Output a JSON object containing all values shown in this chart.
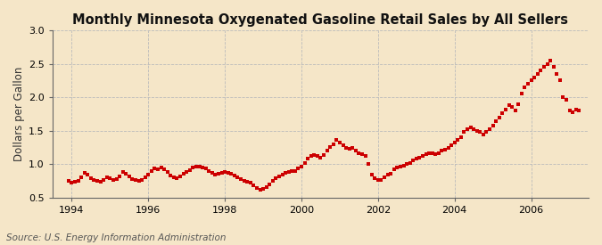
{
  "title": "Monthly Minnesota Oxygenated Gasoline Retail Sales by All Sellers",
  "ylabel": "Dollars per Gallon",
  "source": "Source: U.S. Energy Information Administration",
  "xlim": [
    1993.5,
    2007.5
  ],
  "ylim": [
    0.5,
    3.0
  ],
  "yticks": [
    0.5,
    1.0,
    1.5,
    2.0,
    2.5,
    3.0
  ],
  "xticks": [
    1994,
    1996,
    1998,
    2000,
    2002,
    2004,
    2006
  ],
  "background_color": "#f5e6c8",
  "plot_bg_color": "#f5e6c8",
  "marker_color": "#cc0000",
  "marker_size": 8,
  "grid_color": "#bbbbbb",
  "title_fontsize": 10.5,
  "label_fontsize": 8.5,
  "tick_fontsize": 8,
  "source_fontsize": 7.5,
  "data": [
    [
      1993.917,
      0.755
    ],
    [
      1994.0,
      0.727
    ],
    [
      1994.083,
      0.737
    ],
    [
      1994.167,
      0.755
    ],
    [
      1994.25,
      0.8
    ],
    [
      1994.333,
      0.87
    ],
    [
      1994.417,
      0.84
    ],
    [
      1994.5,
      0.79
    ],
    [
      1994.583,
      0.758
    ],
    [
      1994.667,
      0.745
    ],
    [
      1994.75,
      0.742
    ],
    [
      1994.833,
      0.768
    ],
    [
      1994.917,
      0.798
    ],
    [
      1995.0,
      0.788
    ],
    [
      1995.083,
      0.765
    ],
    [
      1995.167,
      0.778
    ],
    [
      1995.25,
      0.82
    ],
    [
      1995.333,
      0.878
    ],
    [
      1995.417,
      0.85
    ],
    [
      1995.5,
      0.818
    ],
    [
      1995.583,
      0.778
    ],
    [
      1995.667,
      0.758
    ],
    [
      1995.75,
      0.748
    ],
    [
      1995.833,
      0.762
    ],
    [
      1995.917,
      0.8
    ],
    [
      1996.0,
      0.84
    ],
    [
      1996.083,
      0.898
    ],
    [
      1996.167,
      0.93
    ],
    [
      1996.25,
      0.922
    ],
    [
      1996.333,
      0.952
    ],
    [
      1996.417,
      0.92
    ],
    [
      1996.5,
      0.882
    ],
    [
      1996.583,
      0.832
    ],
    [
      1996.667,
      0.8
    ],
    [
      1996.75,
      0.792
    ],
    [
      1996.833,
      0.818
    ],
    [
      1996.917,
      0.858
    ],
    [
      1997.0,
      0.888
    ],
    [
      1997.083,
      0.912
    ],
    [
      1997.167,
      0.95
    ],
    [
      1997.25,
      0.968
    ],
    [
      1997.333,
      0.958
    ],
    [
      1997.417,
      0.95
    ],
    [
      1997.5,
      0.93
    ],
    [
      1997.583,
      0.9
    ],
    [
      1997.667,
      0.868
    ],
    [
      1997.75,
      0.842
    ],
    [
      1997.833,
      0.852
    ],
    [
      1997.917,
      0.872
    ],
    [
      1998.0,
      0.878
    ],
    [
      1998.083,
      0.87
    ],
    [
      1998.167,
      0.858
    ],
    [
      1998.25,
      0.832
    ],
    [
      1998.333,
      0.8
    ],
    [
      1998.417,
      0.772
    ],
    [
      1998.5,
      0.752
    ],
    [
      1998.583,
      0.738
    ],
    [
      1998.667,
      0.718
    ],
    [
      1998.75,
      0.678
    ],
    [
      1998.833,
      0.648
    ],
    [
      1998.917,
      0.618
    ],
    [
      1999.0,
      0.628
    ],
    [
      1999.083,
      0.652
    ],
    [
      1999.167,
      0.7
    ],
    [
      1999.25,
      0.75
    ],
    [
      1999.333,
      0.792
    ],
    [
      1999.417,
      0.82
    ],
    [
      1999.5,
      0.842
    ],
    [
      1999.583,
      0.868
    ],
    [
      1999.667,
      0.882
    ],
    [
      1999.75,
      0.89
    ],
    [
      1999.833,
      0.902
    ],
    [
      1999.917,
      0.932
    ],
    [
      2000.0,
      0.962
    ],
    [
      2000.083,
      1.02
    ],
    [
      2000.167,
      1.08
    ],
    [
      2000.25,
      1.118
    ],
    [
      2000.333,
      1.138
    ],
    [
      2000.417,
      1.118
    ],
    [
      2000.5,
      1.098
    ],
    [
      2000.583,
      1.138
    ],
    [
      2000.667,
      1.2
    ],
    [
      2000.75,
      1.25
    ],
    [
      2000.833,
      1.298
    ],
    [
      2000.917,
      1.358
    ],
    [
      2001.0,
      1.322
    ],
    [
      2001.083,
      1.282
    ],
    [
      2001.167,
      1.242
    ],
    [
      2001.25,
      1.222
    ],
    [
      2001.333,
      1.238
    ],
    [
      2001.417,
      1.202
    ],
    [
      2001.5,
      1.158
    ],
    [
      2001.583,
      1.148
    ],
    [
      2001.667,
      1.128
    ],
    [
      2001.75,
      0.998
    ],
    [
      2001.833,
      0.848
    ],
    [
      2001.917,
      0.788
    ],
    [
      2002.0,
      0.758
    ],
    [
      2002.083,
      0.768
    ],
    [
      2002.167,
      0.8
    ],
    [
      2002.25,
      0.842
    ],
    [
      2002.333,
      0.862
    ],
    [
      2002.417,
      0.918
    ],
    [
      2002.5,
      0.952
    ],
    [
      2002.583,
      0.968
    ],
    [
      2002.667,
      0.978
    ],
    [
      2002.75,
      1.002
    ],
    [
      2002.833,
      1.022
    ],
    [
      2002.917,
      1.052
    ],
    [
      2003.0,
      1.082
    ],
    [
      2003.083,
      1.102
    ],
    [
      2003.167,
      1.128
    ],
    [
      2003.25,
      1.152
    ],
    [
      2003.333,
      1.168
    ],
    [
      2003.417,
      1.158
    ],
    [
      2003.5,
      1.148
    ],
    [
      2003.583,
      1.168
    ],
    [
      2003.667,
      1.198
    ],
    [
      2003.75,
      1.218
    ],
    [
      2003.833,
      1.238
    ],
    [
      2003.917,
      1.278
    ],
    [
      2004.0,
      1.318
    ],
    [
      2004.083,
      1.358
    ],
    [
      2004.167,
      1.408
    ],
    [
      2004.25,
      1.478
    ],
    [
      2004.333,
      1.518
    ],
    [
      2004.417,
      1.548
    ],
    [
      2004.5,
      1.528
    ],
    [
      2004.583,
      1.498
    ],
    [
      2004.667,
      1.478
    ],
    [
      2004.75,
      1.448
    ],
    [
      2004.833,
      1.478
    ],
    [
      2004.917,
      1.518
    ],
    [
      2005.0,
      1.578
    ],
    [
      2005.083,
      1.638
    ],
    [
      2005.167,
      1.698
    ],
    [
      2005.25,
      1.758
    ],
    [
      2005.333,
      1.818
    ],
    [
      2005.417,
      1.878
    ],
    [
      2005.5,
      1.848
    ],
    [
      2005.583,
      1.798
    ],
    [
      2005.667,
      1.898
    ],
    [
      2005.75,
      2.048
    ],
    [
      2005.833,
      2.148
    ],
    [
      2005.917,
      2.198
    ],
    [
      2006.0,
      2.248
    ],
    [
      2006.083,
      2.298
    ],
    [
      2006.167,
      2.348
    ],
    [
      2006.25,
      2.398
    ],
    [
      2006.333,
      2.448
    ],
    [
      2006.417,
      2.498
    ],
    [
      2006.5,
      2.548
    ],
    [
      2006.583,
      2.448
    ],
    [
      2006.667,
      2.348
    ],
    [
      2006.75,
      2.248
    ],
    [
      2006.833,
      1.998
    ],
    [
      2006.917,
      1.958
    ],
    [
      2007.0,
      1.798
    ],
    [
      2007.083,
      1.778
    ],
    [
      2007.167,
      1.818
    ],
    [
      2007.25,
      1.798
    ]
  ]
}
